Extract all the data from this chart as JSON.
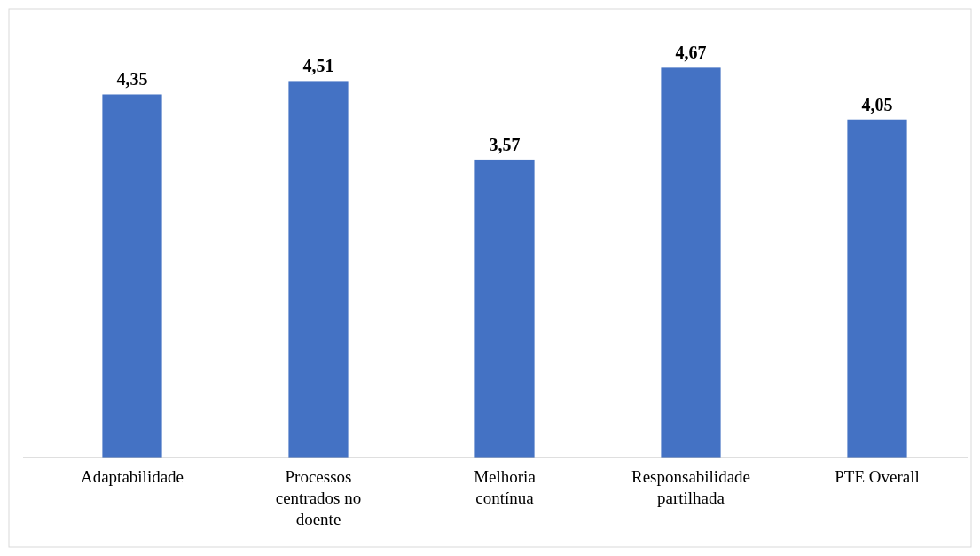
{
  "chart_data": {
    "type": "bar",
    "categories": [
      "Adaptabilidade",
      "Processos centrados no doente",
      "Melhoria contínua",
      "Responsabilidade partilhada",
      "PTE Overall"
    ],
    "values": [
      4.35,
      4.51,
      3.57,
      4.67,
      4.05
    ],
    "value_labels": [
      "4,35",
      "4,51",
      "3,57",
      "4,67",
      "4,05"
    ],
    "color": "#4472c4"
  }
}
